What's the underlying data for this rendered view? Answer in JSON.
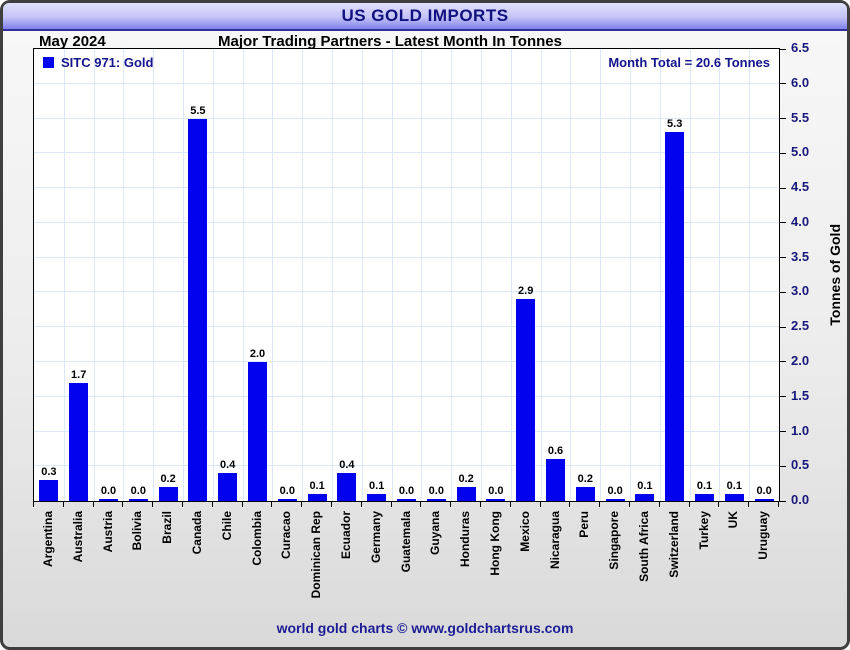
{
  "window": {
    "title": "US GOLD IMPORTS",
    "footer": "world gold charts © www.goldchartsrus.com"
  },
  "chart_data": {
    "type": "bar",
    "title": "US GOLD IMPORTS",
    "period": "May 2024",
    "subtitle": "Major Trading Partners - Latest Month In Tonnes",
    "legend": [
      "SITC 971: Gold"
    ],
    "annotation": "Month Total = 20.6 Tonnes",
    "categories": [
      "Argentina",
      "Australia",
      "Austria",
      "Bolivia",
      "Brazil",
      "Canada",
      "Chile",
      "Colombia",
      "Curacao",
      "Dominican Rep",
      "Ecuador",
      "Germany",
      "Guatemala",
      "Guyana",
      "Honduras",
      "Hong Kong",
      "Mexico",
      "Nicaragua",
      "Peru",
      "Singapore",
      "South Africa",
      "Switzerland",
      "Turkey",
      "UK",
      "Uruguay"
    ],
    "values": [
      0.3,
      1.7,
      0.0,
      0.0,
      0.2,
      5.5,
      0.4,
      2.0,
      0.0,
      0.1,
      0.4,
      0.1,
      0.0,
      0.0,
      0.2,
      0.0,
      2.9,
      0.6,
      0.2,
      0.0,
      0.1,
      5.3,
      0.1,
      0.1,
      0.0
    ],
    "xlabel": "",
    "ylabel": "Tonnes of Gold",
    "ylim": [
      0,
      6.5
    ],
    "ytick_step": 0.5,
    "grid": true,
    "legend_position": "top-left",
    "colors": {
      "bar": "#0202ee",
      "gridline": "#dce9f8",
      "navy_text": "#14148c",
      "titlebar_top": "#e0e0fd",
      "titlebar_bottom": "#8181ec"
    }
  }
}
